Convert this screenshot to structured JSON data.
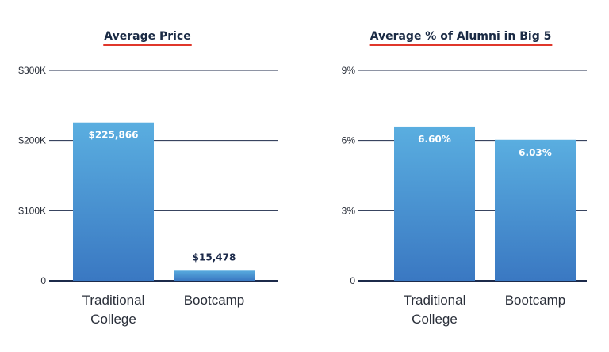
{
  "colors": {
    "title_underline": "#e0372b",
    "grid": "#1c2a4a",
    "bar_top": "#5aaee0",
    "bar_bottom": "#3a78c2",
    "label_inside": "#ffffff",
    "label_outside": "#1c2a4a"
  },
  "chart_data": [
    {
      "type": "bar",
      "title": "Average Price",
      "categories": [
        "Traditional College",
        "Bootcamp"
      ],
      "category_lines": [
        [
          "Traditional",
          "College"
        ],
        [
          "Bootcamp"
        ]
      ],
      "values": [
        225866,
        15478
      ],
      "value_labels": [
        "$225,866",
        "$15,478"
      ],
      "yticks": [
        0,
        100000,
        200000,
        300000
      ],
      "ytick_labels": [
        "0",
        "$100K",
        "$200K",
        "$300K"
      ],
      "ylim": [
        0,
        300000
      ],
      "grid": true,
      "legend": "none"
    },
    {
      "type": "bar",
      "title": "Average % of Alumni in Big 5",
      "categories": [
        "Traditional College",
        "Bootcamp"
      ],
      "category_lines": [
        [
          "Traditional",
          "College"
        ],
        [
          "Bootcamp"
        ]
      ],
      "values": [
        6.6,
        6.03
      ],
      "value_labels": [
        "6.60%",
        "6.03%"
      ],
      "yticks": [
        0,
        3,
        6,
        9
      ],
      "ytick_labels": [
        "0",
        "3%",
        "6%",
        "9%"
      ],
      "ylim": [
        0,
        9
      ],
      "grid": true,
      "legend": "none"
    }
  ]
}
